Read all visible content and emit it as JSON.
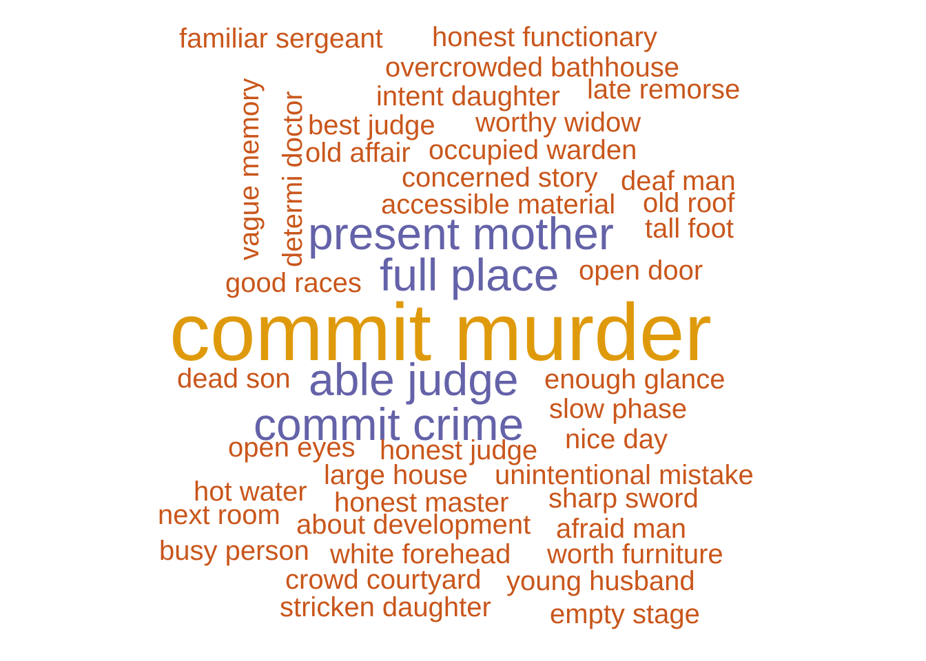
{
  "colors": {
    "small": "#c9561b",
    "mid": "#6462a8",
    "big": "#df9a0c",
    "background": "#ffffff"
  },
  "words": [
    {
      "text": "familiar sergeant",
      "tier": "small"
    },
    {
      "text": "honest functionary",
      "tier": "small"
    },
    {
      "text": "overcrowded bathhouse",
      "tier": "small"
    },
    {
      "text": "late remorse",
      "tier": "small"
    },
    {
      "text": "intent daughter",
      "tier": "small"
    },
    {
      "text": "worthy widow",
      "tier": "small"
    },
    {
      "text": "best judge",
      "tier": "small"
    },
    {
      "text": "old affair",
      "tier": "small"
    },
    {
      "text": "occupied warden",
      "tier": "small"
    },
    {
      "text": "concerned story",
      "tier": "small"
    },
    {
      "text": "deaf man",
      "tier": "small"
    },
    {
      "text": "accessible material",
      "tier": "small"
    },
    {
      "text": "old roof",
      "tier": "small"
    },
    {
      "text": "vague memory",
      "tier": "small",
      "vertical": true
    },
    {
      "text": "determi doctor",
      "tier": "small",
      "vertical": true
    },
    {
      "text": "present mother",
      "tier": "mid"
    },
    {
      "text": "tall foot",
      "tier": "small"
    },
    {
      "text": "full place",
      "tier": "mid"
    },
    {
      "text": "open door",
      "tier": "small"
    },
    {
      "text": "good races",
      "tier": "small"
    },
    {
      "text": "commit murder",
      "tier": "big"
    },
    {
      "text": "dead son",
      "tier": "small"
    },
    {
      "text": "able judge",
      "tier": "mid"
    },
    {
      "text": "enough glance",
      "tier": "small"
    },
    {
      "text": "slow phase",
      "tier": "small"
    },
    {
      "text": "commit crime",
      "tier": "mid"
    },
    {
      "text": "nice day",
      "tier": "small"
    },
    {
      "text": "open eyes",
      "tier": "small"
    },
    {
      "text": "honest judge",
      "tier": "small"
    },
    {
      "text": "large house",
      "tier": "small"
    },
    {
      "text": "unintentional mistake",
      "tier": "small"
    },
    {
      "text": "hot water",
      "tier": "small"
    },
    {
      "text": "sharp sword",
      "tier": "small"
    },
    {
      "text": "honest master",
      "tier": "small"
    },
    {
      "text": "next room",
      "tier": "small"
    },
    {
      "text": "about development",
      "tier": "small"
    },
    {
      "text": "afraid man",
      "tier": "small"
    },
    {
      "text": "busy person",
      "tier": "small"
    },
    {
      "text": "white forehead",
      "tier": "small"
    },
    {
      "text": "worth furniture",
      "tier": "small"
    },
    {
      "text": "crowd courtyard",
      "tier": "small"
    },
    {
      "text": "young husband",
      "tier": "small"
    },
    {
      "text": "stricken daughter",
      "tier": "small"
    },
    {
      "text": "empty stage",
      "tier": "small"
    }
  ]
}
